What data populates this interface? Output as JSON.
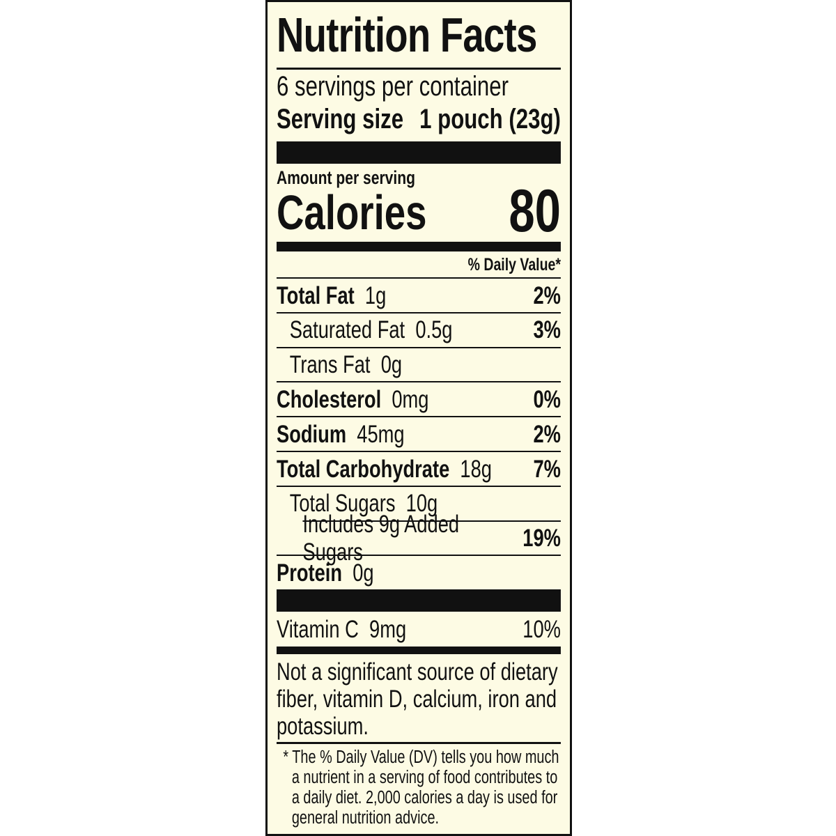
{
  "title": "Nutrition Facts",
  "servings_per_container": "6 servings per container",
  "serving_size": {
    "label": "Serving size",
    "value": "1 pouch (23g)"
  },
  "amount_per_serving": "Amount per serving",
  "calories": {
    "label": "Calories",
    "value": "80"
  },
  "daily_value_header": "% Daily Value*",
  "nutrients": [
    {
      "name": "Total Fat",
      "amount": "1g",
      "dv": "2%",
      "bold": true,
      "indent": 0
    },
    {
      "name": "Saturated Fat",
      "amount": "0.5g",
      "dv": "3%",
      "bold": false,
      "indent": 1
    },
    {
      "name": "Trans Fat",
      "amount": "0g",
      "dv": "",
      "bold": false,
      "indent": 1
    },
    {
      "name": "Cholesterol",
      "amount": "0mg",
      "dv": "0%",
      "bold": true,
      "indent": 0
    },
    {
      "name": "Sodium",
      "amount": "45mg",
      "dv": "2%",
      "bold": true,
      "indent": 0
    },
    {
      "name": "Total Carbohydrate",
      "amount": "18g",
      "dv": "7%",
      "bold": true,
      "indent": 0
    },
    {
      "name": "Total Sugars",
      "amount": "10g",
      "dv": "",
      "bold": false,
      "indent": 1
    },
    {
      "name": "Includes 9g Added Sugars",
      "amount": "",
      "dv": "19%",
      "bold": false,
      "indent": 2
    },
    {
      "name": "Protein",
      "amount": "0g",
      "dv": "",
      "bold": true,
      "indent": 0
    }
  ],
  "vitamins": [
    {
      "name": "Vitamin C",
      "amount": "9mg",
      "dv": "10%"
    }
  ],
  "not_significant_note": "Not a significant source of dietary fiber, vitamin D, calcium, iron and potassium.",
  "footnote": "* The % Daily Value (DV) tells you how much a nutrient in a serving of food contributes to a daily diet. 2,000 calories a day is used for general nutrition advice.",
  "colors": {
    "background": "#fdfbe4",
    "ink": "#111111"
  }
}
